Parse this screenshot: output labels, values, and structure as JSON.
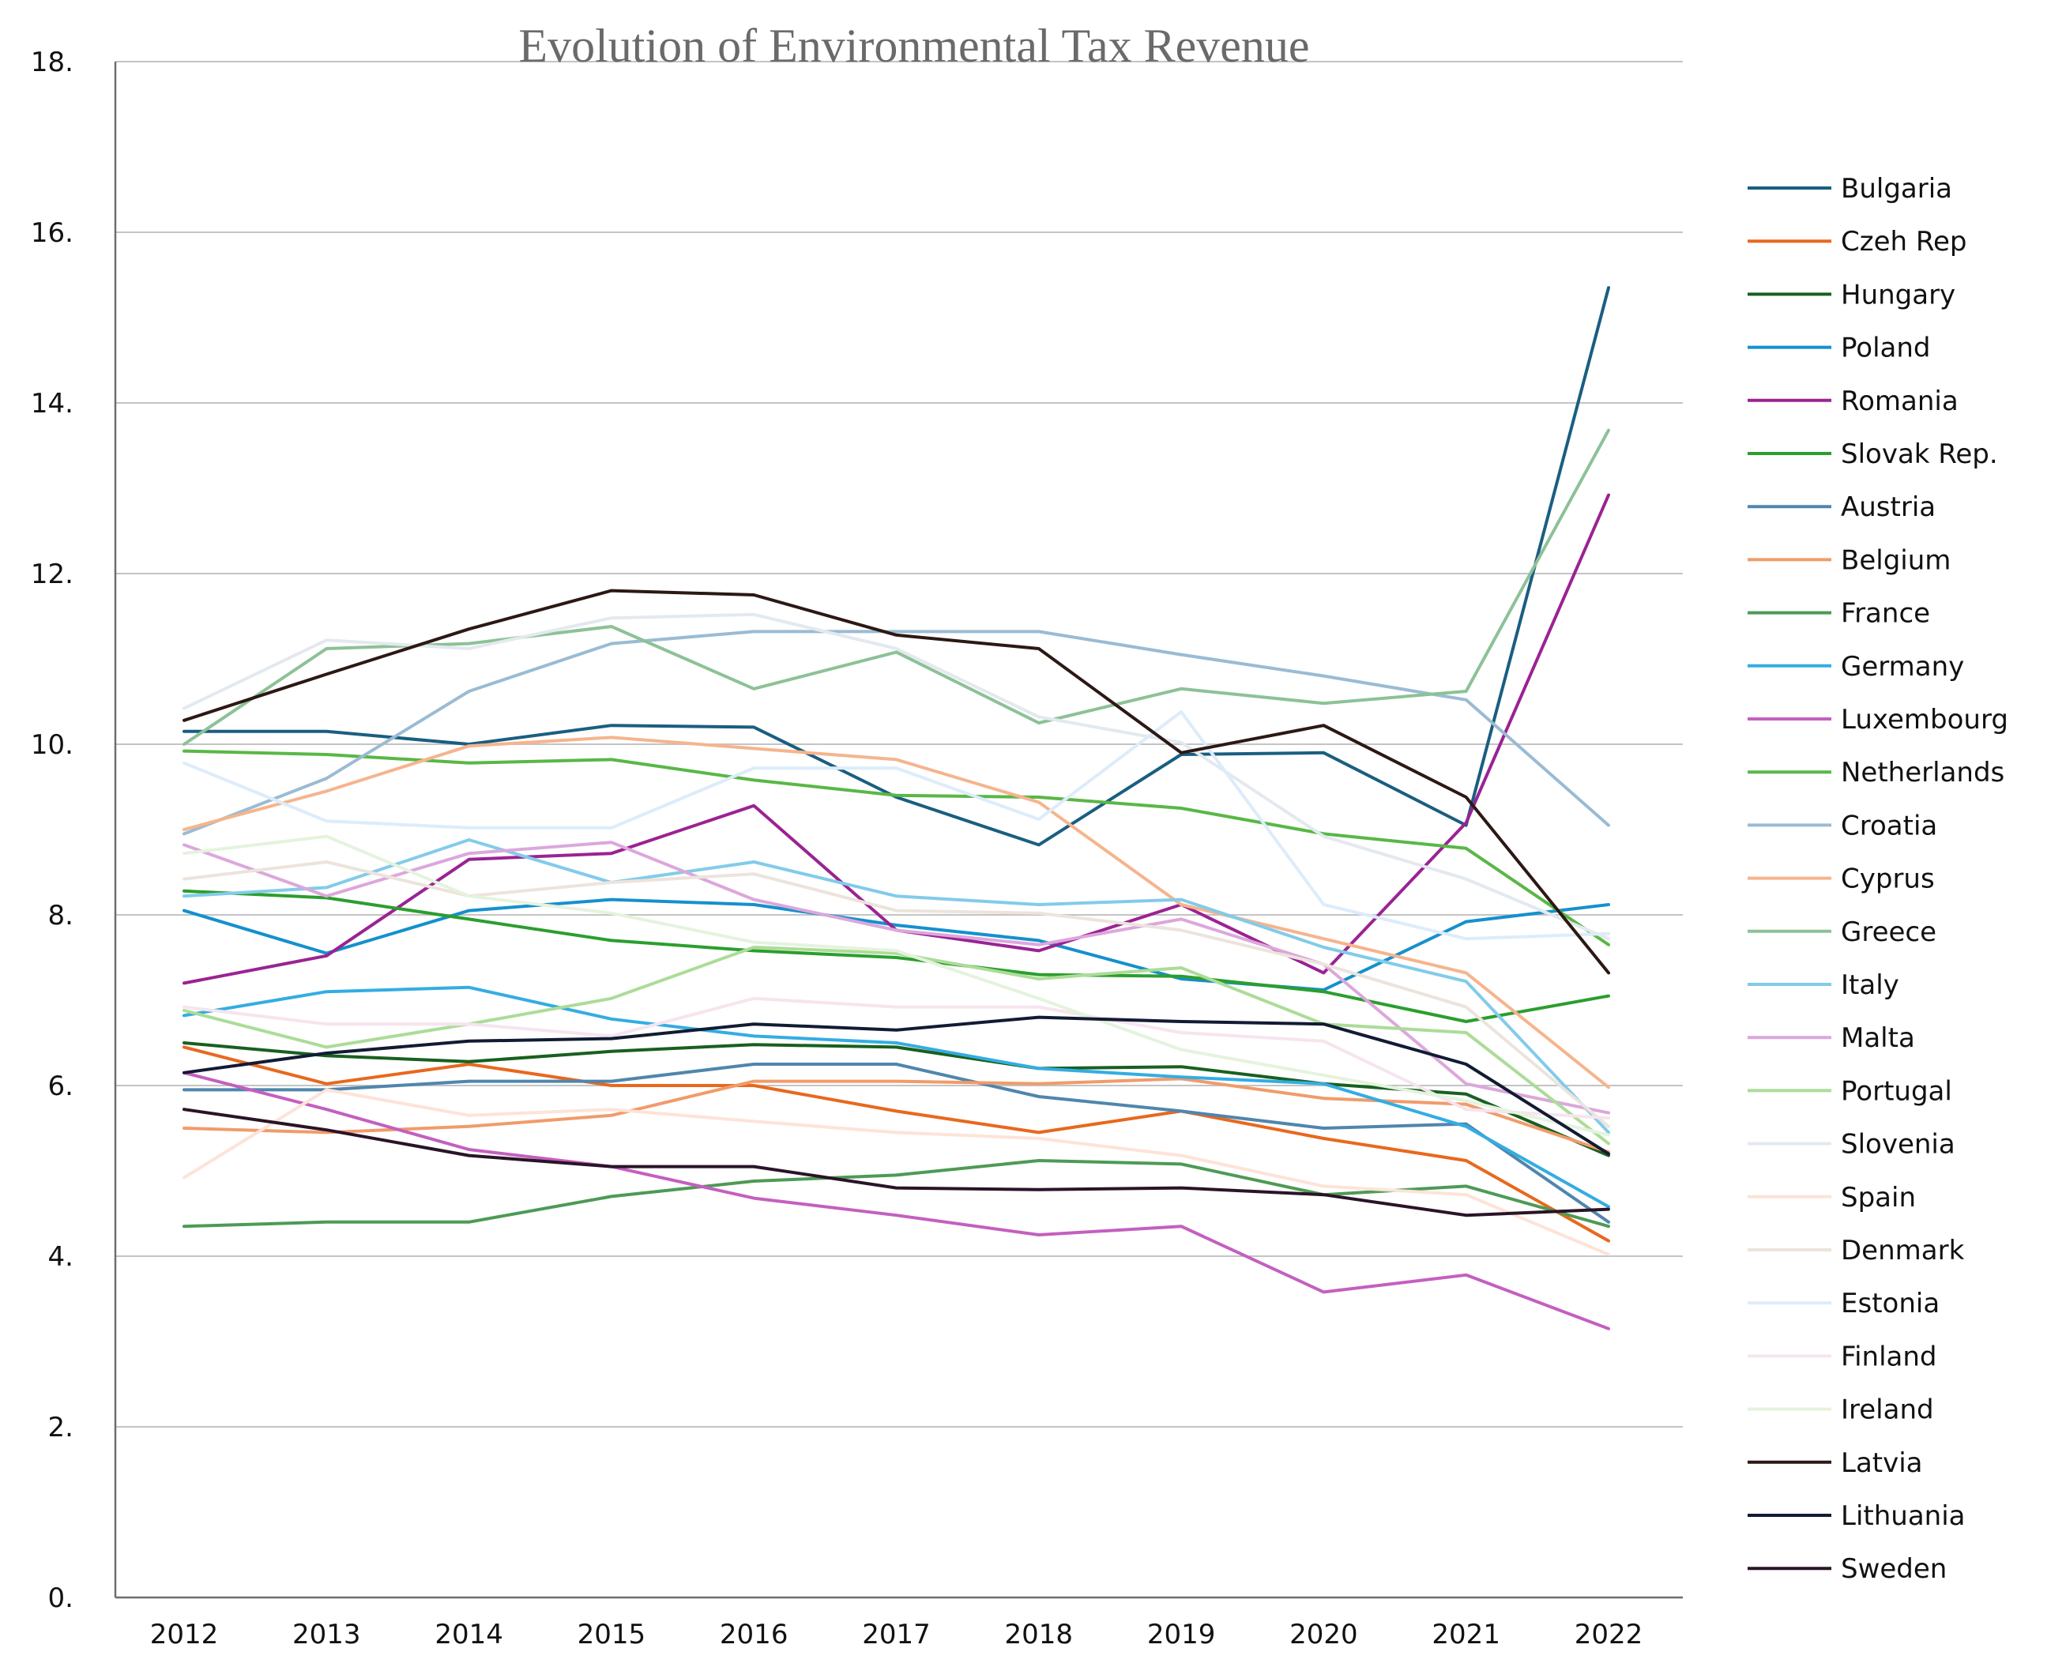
{
  "chart_data": {
    "type": "line",
    "title": "Evolution of Environmental Tax Revenue",
    "xlabel": "",
    "ylabel": "",
    "categories": [
      "2012",
      "2013",
      "2014",
      "2015",
      "2016",
      "2017",
      "2018",
      "2019",
      "2020",
      "2021",
      "2022"
    ],
    "ylim": [
      0,
      18
    ],
    "yticks": [
      0,
      2,
      4,
      6,
      8,
      10,
      12,
      14,
      16,
      18
    ],
    "ytick_labels": [
      "0.",
      "2.",
      "4.",
      "6.",
      "8.",
      "10.",
      "12.",
      "14.",
      "16.",
      "18."
    ],
    "grid": true,
    "legend_position": "right",
    "series": [
      {
        "name": "Bulgaria",
        "color": "#1a5e80",
        "values": [
          10.15,
          10.15,
          10.0,
          10.22,
          10.2,
          9.38,
          8.82,
          9.88,
          9.9,
          9.05,
          15.35
        ]
      },
      {
        "name": "Czeh Rep",
        "color": "#e8681e",
        "values": [
          6.45,
          6.02,
          6.25,
          6.0,
          6.0,
          5.7,
          5.45,
          5.7,
          5.38,
          5.12,
          4.18
        ]
      },
      {
        "name": "Hungary",
        "color": "#18601f",
        "values": [
          6.5,
          6.35,
          6.28,
          6.4,
          6.48,
          6.45,
          6.2,
          6.22,
          6.02,
          5.9,
          5.18
        ]
      },
      {
        "name": "Poland",
        "color": "#1590cd",
        "values": [
          8.05,
          7.55,
          8.05,
          8.18,
          8.12,
          7.88,
          7.7,
          7.25,
          7.12,
          7.92,
          8.12
        ]
      },
      {
        "name": "Romania",
        "color": "#9a2393",
        "values": [
          7.2,
          7.52,
          8.65,
          8.72,
          9.28,
          7.82,
          7.58,
          8.12,
          7.32,
          9.08,
          12.92
        ]
      },
      {
        "name": "Slovak Rep.",
        "color": "#2b9e2e",
        "values": [
          8.28,
          8.2,
          7.95,
          7.7,
          7.58,
          7.5,
          7.3,
          7.28,
          7.1,
          6.75,
          7.05
        ]
      },
      {
        "name": "Austria",
        "color": "#4f86ad",
        "values": [
          5.95,
          5.95,
          6.05,
          6.05,
          6.25,
          6.25,
          5.87,
          5.7,
          5.5,
          5.55,
          4.4
        ]
      },
      {
        "name": "Belgium",
        "color": "#f19b6a",
        "values": [
          5.5,
          5.45,
          5.52,
          5.65,
          6.05,
          6.05,
          6.02,
          6.08,
          5.85,
          5.78,
          5.22
        ]
      },
      {
        "name": "France",
        "color": "#4d9a55",
        "values": [
          4.35,
          4.4,
          4.4,
          4.7,
          4.88,
          4.95,
          5.12,
          5.08,
          4.72,
          4.82,
          4.35
        ]
      },
      {
        "name": "Germany",
        "color": "#33ade2",
        "values": [
          6.82,
          7.1,
          7.15,
          6.78,
          6.58,
          6.5,
          6.2,
          6.1,
          6.02,
          5.52,
          4.58
        ]
      },
      {
        "name": "Luxembourg",
        "color": "#c45fc0",
        "values": [
          6.15,
          5.72,
          5.25,
          5.05,
          4.68,
          4.48,
          4.25,
          4.35,
          3.58,
          3.78,
          3.15
        ]
      },
      {
        "name": "Netherlands",
        "color": "#59b746",
        "values": [
          9.92,
          9.88,
          9.78,
          9.82,
          9.58,
          9.4,
          9.38,
          9.25,
          8.95,
          8.78,
          7.65
        ]
      },
      {
        "name": "Croatia",
        "color": "#9abbd3",
        "values": [
          8.95,
          9.6,
          10.62,
          11.18,
          11.32,
          11.32,
          11.32,
          11.05,
          10.8,
          10.52,
          9.05
        ]
      },
      {
        "name": "Cyprus",
        "color": "#f6b48d",
        "values": [
          9.0,
          9.45,
          9.98,
          10.08,
          9.95,
          9.82,
          9.32,
          8.12,
          7.72,
          7.32,
          5.98
        ]
      },
      {
        "name": "Greece",
        "color": "#8dc197",
        "values": [
          10.0,
          11.12,
          11.18,
          11.38,
          10.65,
          11.08,
          10.25,
          10.65,
          10.48,
          10.62,
          13.68
        ]
      },
      {
        "name": "Italy",
        "color": "#82cbea",
        "values": [
          8.22,
          8.32,
          8.88,
          8.38,
          8.62,
          8.22,
          8.12,
          8.18,
          7.62,
          7.22,
          5.45
        ]
      },
      {
        "name": "Malta",
        "color": "#dca7dc",
        "values": [
          8.82,
          8.22,
          8.72,
          8.85,
          8.18,
          7.82,
          7.65,
          7.95,
          7.42,
          6.02,
          5.68
        ]
      },
      {
        "name": "Portugal",
        "color": "#acdc98",
        "values": [
          6.88,
          6.45,
          6.72,
          7.02,
          7.62,
          7.55,
          7.25,
          7.38,
          6.72,
          6.62,
          5.32
        ]
      },
      {
        "name": "Slovenia",
        "color": "#e3e9ee",
        "values": [
          10.42,
          11.22,
          11.12,
          11.48,
          11.52,
          11.12,
          10.32,
          10.02,
          8.92,
          8.42,
          7.72
        ]
      },
      {
        "name": "Spain",
        "color": "#fde3d8",
        "values": [
          4.92,
          5.95,
          5.65,
          5.72,
          5.58,
          5.45,
          5.38,
          5.18,
          4.82,
          4.72,
          4.02
        ]
      },
      {
        "name": "Denmark",
        "color": "#ece4dc",
        "values": [
          8.42,
          8.62,
          8.22,
          8.38,
          8.48,
          8.05,
          8.02,
          7.82,
          7.42,
          6.92,
          5.52
        ]
      },
      {
        "name": "Estonia",
        "color": "#dcecfa",
        "values": [
          9.78,
          9.1,
          9.02,
          9.02,
          9.72,
          9.72,
          9.12,
          10.38,
          8.12,
          7.72,
          7.78
        ]
      },
      {
        "name": "Finland",
        "color": "#f6e4ef",
        "values": [
          6.92,
          6.72,
          6.72,
          6.58,
          7.02,
          6.92,
          6.92,
          6.62,
          6.52,
          5.72,
          5.62
        ]
      },
      {
        "name": "Ireland",
        "color": "#e5f3de",
        "values": [
          8.72,
          8.92,
          8.22,
          8.02,
          7.68,
          7.58,
          7.02,
          6.42,
          6.12,
          5.82,
          5.42
        ]
      },
      {
        "name": "Latvia",
        "color": "#2c1814",
        "values": [
          10.28,
          10.82,
          11.35,
          11.8,
          11.75,
          11.28,
          11.12,
          9.9,
          10.22,
          9.38,
          7.32
        ]
      },
      {
        "name": "Lithuania",
        "color": "#111b33",
        "values": [
          6.15,
          6.38,
          6.52,
          6.55,
          6.72,
          6.65,
          6.8,
          6.75,
          6.72,
          6.25,
          5.2
        ]
      },
      {
        "name": "Sweden",
        "color": "#2a1428",
        "values": [
          5.72,
          5.48,
          5.18,
          5.05,
          5.05,
          4.8,
          4.78,
          4.8,
          4.72,
          4.48,
          4.55
        ]
      }
    ]
  }
}
